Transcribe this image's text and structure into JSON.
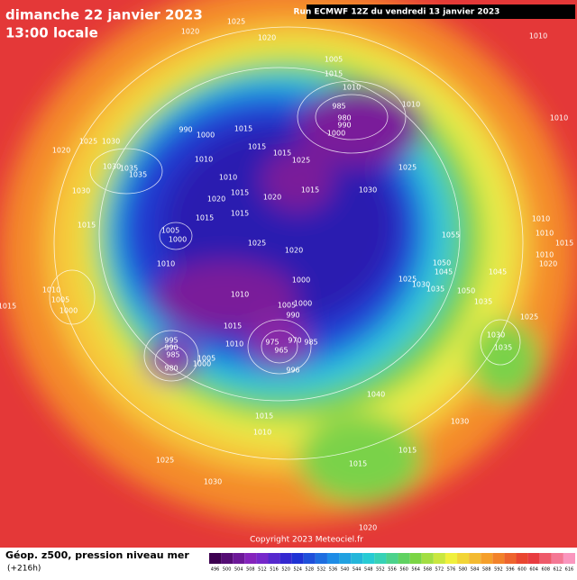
{
  "header": {
    "date": "dimanche 22 janvier 2023",
    "time": "13:00 locale",
    "run": "Run ECMWF 12Z du vendredi 13 janvier 2023"
  },
  "footer": {
    "title": "Géop. z500, pression niveau mer",
    "lead": "(+216h)",
    "copyright": "Copyright 2023 Meteociel.fr"
  },
  "isobar_labels": [
    1025,
    1020,
    1020,
    1010,
    1005,
    1015,
    1010,
    1010,
    985,
    980,
    990,
    1000,
    1010,
    990,
    1000,
    1015,
    1025,
    1030,
    1020,
    1015,
    1015,
    1010,
    1025,
    1025,
    1030,
    1035,
    1035,
    1010,
    1015,
    1015,
    1030,
    1030,
    1020,
    1020,
    1015,
    1015,
    1010,
    1005,
    1000,
    1015,
    1010,
    1015,
    1055,
    1025,
    1020,
    1010,
    1010,
    1050,
    1045,
    1045,
    1025,
    1030,
    1035,
    1020,
    1010,
    1005,
    1000,
    1010,
    1000,
    1050,
    1035,
    1025,
    1015,
    1005,
    1000,
    990,
    1015,
    1010,
    975,
    970,
    965,
    985,
    995,
    990,
    985,
    980,
    1005,
    1000,
    996,
    1030,
    1035,
    1040,
    1015,
    1010,
    1030,
    1015,
    1025,
    1015,
    1030,
    1020,
    1015
  ],
  "scale": [
    496,
    500,
    504,
    508,
    512,
    516,
    520,
    524,
    528,
    532,
    536,
    540,
    544,
    548,
    552,
    556,
    560,
    564,
    568,
    572,
    576,
    580,
    584,
    588,
    592,
    596,
    600,
    604,
    608,
    612,
    616
  ]
}
